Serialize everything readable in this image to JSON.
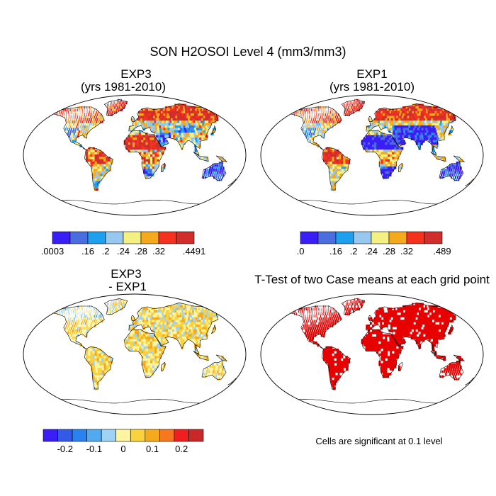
{
  "chart_data": {
    "type": "heatmap",
    "title": "SON H2OSOI Level 4 (mm3/mm3)",
    "panels": [
      {
        "id": "exp3",
        "title_lines": [
          "EXP3",
          "(yrs 1981-2010)"
        ],
        "colorbar": {
          "colors": [
            "#3a1ef5",
            "#4a6ee0",
            "#1ea0f0",
            "#96c8f0",
            "#f5f082",
            "#f5aa1e",
            "#f5321e",
            "#d22d2d"
          ],
          "tick_labels": [
            ".0003",
            "",
            ".16",
            ".2",
            ".24",
            ".28",
            ".32",
            "",
            ".4491"
          ],
          "min": 0.0003,
          "max": 0.4491
        }
      },
      {
        "id": "exp1",
        "title_lines": [
          "EXP1",
          "(yrs 1981-2010)"
        ],
        "colorbar": {
          "colors": [
            "#3a1ef5",
            "#4a6ee0",
            "#1ea0f0",
            "#96c8f0",
            "#f5f082",
            "#f5aa1e",
            "#f5321e",
            "#d22d2d"
          ],
          "tick_labels": [
            ".0",
            "",
            ".16",
            ".2",
            ".24",
            ".28",
            ".32",
            "",
            ".489"
          ],
          "min": 0.0,
          "max": 0.489
        }
      },
      {
        "id": "diff",
        "title_lines": [
          "EXP3",
          "- EXP1"
        ],
        "colorbar": {
          "colors": [
            "#3a1ef5",
            "#325ae6",
            "#2882f0",
            "#50aaf0",
            "#a0d2f5",
            "#fff5a0",
            "#fad23c",
            "#f5aa1e",
            "#f5781e",
            "#f01e1e",
            "#c82828"
          ],
          "tick_labels": [
            "-0.2",
            "-0.1",
            "0",
            "0.1",
            "0.2"
          ],
          "min": -0.25,
          "max": 0.25
        }
      },
      {
        "id": "ttest",
        "title_lines": [
          "T-Test of two Case means at each grid point"
        ],
        "note": "Cells are significant at 0.1 level",
        "significance_color": "#e60000"
      }
    ]
  }
}
